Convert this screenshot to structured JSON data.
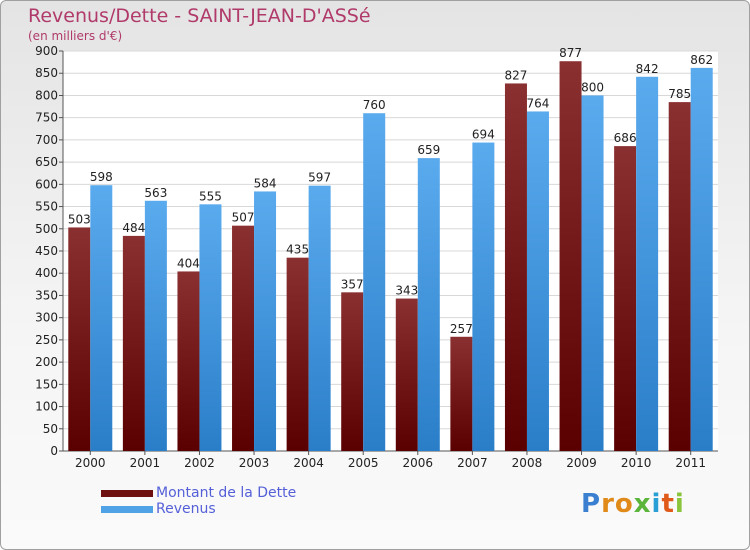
{
  "title": "Revenus/Dette - SAINT-JEAN-D'ASSé",
  "subtitle": "(en milliers d'€)",
  "legend": [
    {
      "label": "Montant de la Dette",
      "color": "#6e1010"
    },
    {
      "label": "Revenus",
      "color": "#4fa2e6"
    }
  ],
  "logo": "Proxiti",
  "chart_data": {
    "type": "bar",
    "categories": [
      "2000",
      "2001",
      "2002",
      "2003",
      "2004",
      "2005",
      "2006",
      "2007",
      "2008",
      "2009",
      "2010",
      "2011"
    ],
    "series": [
      {
        "name": "Montant de la Dette",
        "color": "#6e1010",
        "values": [
          503,
          484,
          404,
          507,
          435,
          357,
          343,
          257,
          827,
          877,
          686,
          785
        ]
      },
      {
        "name": "Revenus",
        "color": "#4fa2e6",
        "values": [
          598,
          563,
          555,
          584,
          597,
          760,
          659,
          694,
          764,
          800,
          842,
          862
        ]
      }
    ],
    "ylim": [
      0,
      900
    ],
    "yticks": [
      0,
      50,
      100,
      150,
      200,
      250,
      300,
      350,
      400,
      450,
      500,
      550,
      600,
      650,
      700,
      750,
      800,
      850,
      900
    ],
    "grid": true,
    "legend_position": "bottom-left"
  }
}
